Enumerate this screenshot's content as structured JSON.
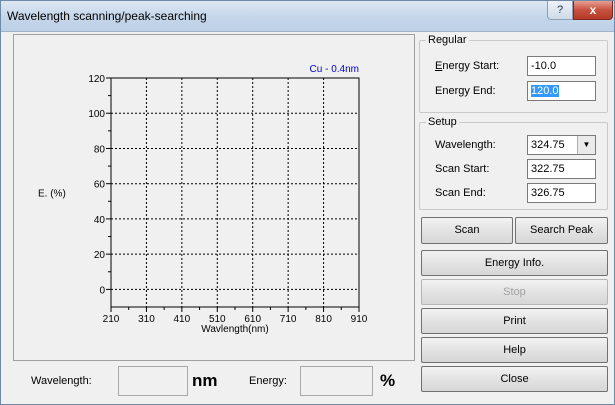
{
  "window": {
    "title": "Wavelength scanning/peak-searching",
    "help_glyph": "?",
    "close_glyph": "x"
  },
  "chart_data": {
    "type": "line",
    "title": "Cu - 0.4nm",
    "xlabel": "Wavlength(nm)",
    "ylabel": "E. (%)",
    "xlim": [
      210,
      910
    ],
    "ylim": [
      -10,
      120
    ],
    "xticks": [
      "210",
      "310",
      "410",
      "510",
      "610",
      "710",
      "810",
      "910"
    ],
    "yticks": [
      "0",
      "20",
      "40",
      "60",
      "80",
      "100",
      "120"
    ],
    "grid": true,
    "series": []
  },
  "regular": {
    "group_label": "Regular",
    "energy_start_label": "Energy Start:",
    "energy_start_value": "-10.0",
    "energy_end_label": "Energy End:",
    "energy_end_value": "120.0"
  },
  "setup": {
    "group_label": "Setup",
    "wavelength_label": "Wavelength:",
    "wavelength_value": "324.75",
    "scan_start_label": "Scan Start:",
    "scan_start_value": "322.75",
    "scan_end_label": "Scan End:",
    "scan_end_value": "326.75"
  },
  "buttons": {
    "scan": "Scan",
    "search_peak": "Search Peak",
    "energy_info": "Energy Info.",
    "stop": "Stop",
    "print": "Print",
    "help": "Help",
    "close": "Close"
  },
  "status": {
    "wavelength_label": "Wavelength:",
    "wavelength_value": "",
    "wavelength_unit": "nm",
    "energy_label": "Energy:",
    "energy_value": "",
    "energy_unit": "%"
  }
}
